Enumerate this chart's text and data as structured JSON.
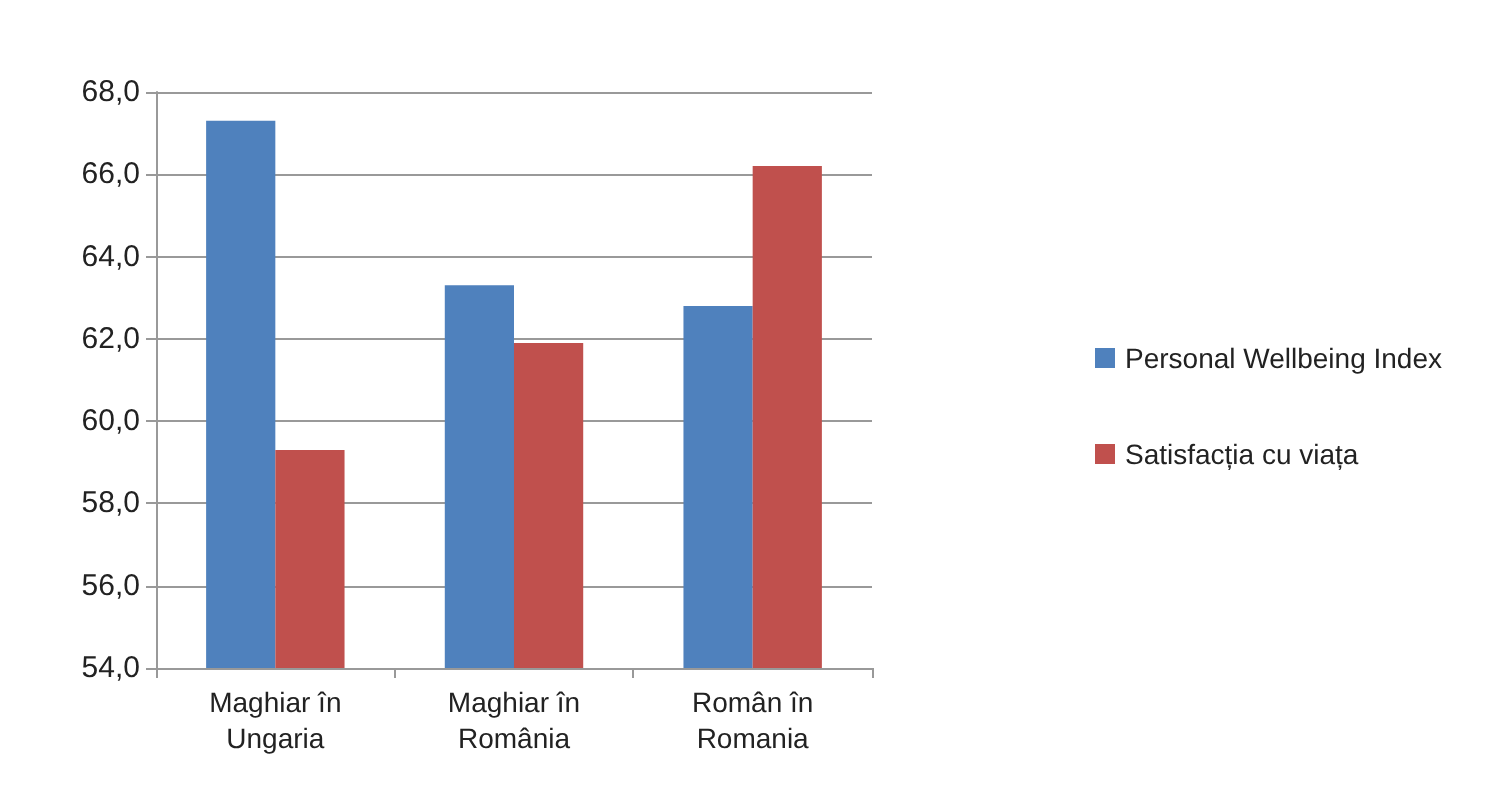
{
  "chart_data": {
    "type": "bar",
    "categories": [
      "Maghiar în Ungaria",
      "Maghiar în România",
      "Român în Romania"
    ],
    "series": [
      {
        "name": "Personal Wellbeing Index",
        "color": "#4f81bd",
        "values": [
          67.3,
          63.3,
          62.8
        ]
      },
      {
        "name": "Satisfacția cu viața",
        "color": "#c0504d",
        "values": [
          59.3,
          61.9,
          66.2
        ]
      }
    ],
    "ylim": [
      54,
      68
    ],
    "yticks": [
      {
        "value": 54,
        "label": "54,0"
      },
      {
        "value": 56,
        "label": "56,0"
      },
      {
        "value": 58,
        "label": "58,0"
      },
      {
        "value": 60,
        "label": "60,0"
      },
      {
        "value": 62,
        "label": "62,0"
      },
      {
        "value": 64,
        "label": "64,0"
      },
      {
        "value": 66,
        "label": "66,0"
      },
      {
        "value": 68,
        "label": "68,0"
      }
    ],
    "grid": "y",
    "legend": "right"
  }
}
